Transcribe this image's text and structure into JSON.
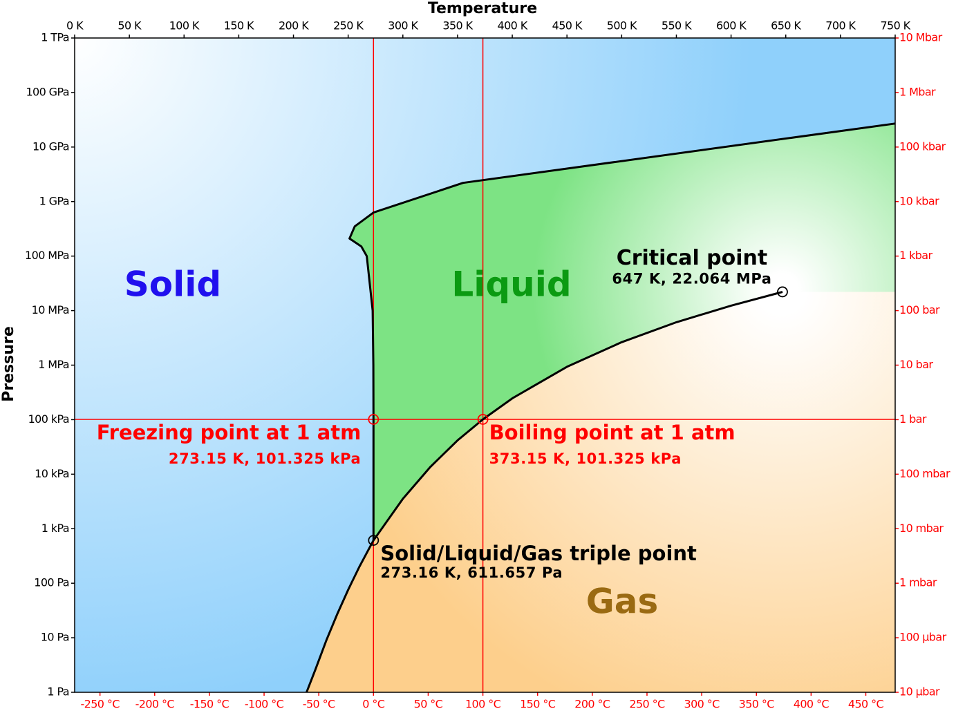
{
  "chart_data": {
    "type": "line",
    "xlabel": "Temperature",
    "ylabel": "Pressure",
    "xlim": [
      0,
      750
    ],
    "xticks": [
      {
        "value": 0,
        "label": "0 K"
      },
      {
        "value": 50,
        "label": "50 K"
      },
      {
        "value": 100,
        "label": "100 K"
      },
      {
        "value": 150,
        "label": "150 K"
      },
      {
        "value": 200,
        "label": "200 K"
      },
      {
        "value": 250,
        "label": "250 K"
      },
      {
        "value": 300,
        "label": "300 K"
      },
      {
        "value": 350,
        "label": "350 K"
      },
      {
        "value": 400,
        "label": "400 K"
      },
      {
        "value": 450,
        "label": "450 K"
      },
      {
        "value": 500,
        "label": "500 K"
      },
      {
        "value": 550,
        "label": "550 K"
      },
      {
        "value": 600,
        "label": "600 K"
      },
      {
        "value": 650,
        "label": "650 K"
      },
      {
        "value": 700,
        "label": "700 K"
      },
      {
        "value": 750,
        "label": "750 K"
      }
    ],
    "x2lim": [
      -273.15,
      476.85
    ],
    "x2ticks": [
      {
        "value": -250,
        "label": "-250 °C"
      },
      {
        "value": -200,
        "label": "-200 °C"
      },
      {
        "value": -150,
        "label": "-150 °C"
      },
      {
        "value": -100,
        "label": "-100 °C"
      },
      {
        "value": -50,
        "label": "-50 °C"
      },
      {
        "value": 0,
        "label": "0 °C"
      },
      {
        "value": 50,
        "label": "50 °C"
      },
      {
        "value": 100,
        "label": "100 °C"
      },
      {
        "value": 150,
        "label": "150 °C"
      },
      {
        "value": 200,
        "label": "200 °C"
      },
      {
        "value": 250,
        "label": "250 °C"
      },
      {
        "value": 300,
        "label": "300 °C"
      },
      {
        "value": 350,
        "label": "350 °C"
      },
      {
        "value": 400,
        "label": "400 °C"
      },
      {
        "value": 450,
        "label": "450 °C"
      }
    ],
    "ylim": [
      1,
      1000000000000
    ],
    "yscale": "log",
    "yticks": [
      {
        "value": 1,
        "label": "1 Pa"
      },
      {
        "value": 10,
        "label": "10 Pa"
      },
      {
        "value": 100,
        "label": "100 Pa"
      },
      {
        "value": 1000,
        "label": "1 kPa"
      },
      {
        "value": 10000,
        "label": "10 kPa"
      },
      {
        "value": 100000,
        "label": "100 kPa"
      },
      {
        "value": 1000000,
        "label": "1 MPa"
      },
      {
        "value": 10000000,
        "label": "10 MPa"
      },
      {
        "value": 100000000,
        "label": "100 MPa"
      },
      {
        "value": 1000000000,
        "label": "1 GPa"
      },
      {
        "value": 10000000000,
        "label": "10 GPa"
      },
      {
        "value": 100000000000,
        "label": "100 GPa"
      },
      {
        "value": 1000000000000,
        "label": "1 TPa"
      }
    ],
    "y2lim": [
      1e-05,
      10000000
    ],
    "y2ticks": [
      {
        "value": 1e-05,
        "label": "10 µbar"
      },
      {
        "value": 0.0001,
        "label": "100 µbar"
      },
      {
        "value": 0.001,
        "label": "1 mbar"
      },
      {
        "value": 0.01,
        "label": "10 mbar"
      },
      {
        "value": 0.1,
        "label": "100 mbar"
      },
      {
        "value": 1,
        "label": "1 bar"
      },
      {
        "value": 10,
        "label": "10 bar"
      },
      {
        "value": 100,
        "label": "100 bar"
      },
      {
        "value": 1000,
        "label": "1 kbar"
      },
      {
        "value": 10000,
        "label": "10 kbar"
      },
      {
        "value": 100000,
        "label": "100 kbar"
      },
      {
        "value": 1000000,
        "label": "1 Mbar"
      },
      {
        "value": 10000000,
        "label": "10 Mbar"
      }
    ],
    "secondary_axis_color": "#ff0000",
    "series": [
      {
        "color": "#000000",
        "x": [
          273.16,
          273.15,
          273,
          272.4,
          267,
          262,
          251.2,
          256,
          273.2,
          355,
          750
        ],
        "values": [
          611.657,
          101325,
          1000000,
          10000000,
          100000000,
          150000000,
          210000000,
          350000000,
          630000000,
          2200000000,
          27000000000
        ]
      },
      {
        "color": "#000000",
        "x": [
          212,
          220,
          230,
          240,
          250,
          260,
          273.16,
          300,
          325,
          350,
          373.15,
          400,
          450,
          500,
          550,
          600,
          647
        ],
        "values": [
          1,
          2.6,
          8.9,
          27,
          76,
          196,
          611.657,
          3537,
          13530,
          41680,
          101325,
          245770,
          932000,
          2637000,
          6117000,
          12330000,
          22064000
        ]
      }
    ],
    "reference_lines": {
      "color": "#ff0000",
      "x": [
        273.15,
        373.15
      ],
      "y": [
        101325
      ]
    },
    "points": [
      {
        "label": "Freezing point at 1 atm",
        "detail": "273.15 K, 101.325 kPa",
        "x": 273.15,
        "y": 101325,
        "color": "#ff0000"
      },
      {
        "label": "Boiling point at 1 atm",
        "detail": "373.15 K, 101.325 kPa",
        "x": 373.15,
        "y": 101325,
        "color": "#ff0000"
      },
      {
        "label": "Solid/Liquid/Gas triple point",
        "detail": "273.16 K, 611.657 Pa",
        "x": 273.16,
        "y": 611.657,
        "color": "#000000"
      },
      {
        "label": "Critical point",
        "detail": "647 K, 22.064 MPa",
        "x": 647,
        "y": 22064000,
        "color": "#000000"
      }
    ],
    "regions": [
      {
        "label": "Solid",
        "color": "#2010ee",
        "fill": "#8fd0fb"
      },
      {
        "label": "Liquid",
        "color": "#0b9a12",
        "fill": "#7de384"
      },
      {
        "label": "Gas",
        "color": "#9a6a12",
        "fill": "#fdcf8c"
      }
    ]
  }
}
